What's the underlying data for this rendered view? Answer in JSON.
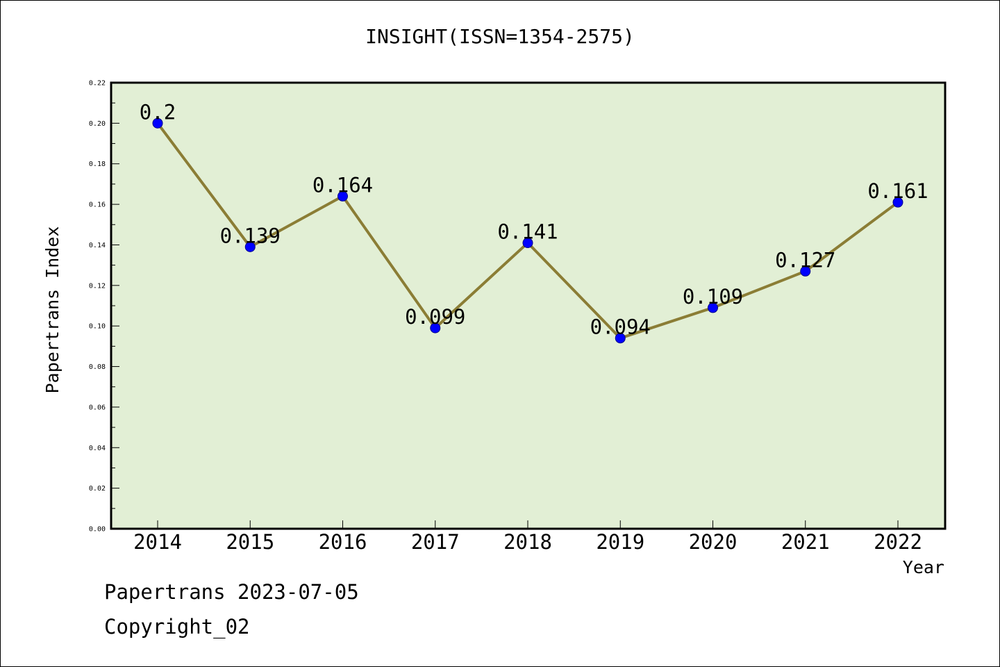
{
  "chart_data": {
    "type": "line",
    "title": "INSIGHT(ISSN=1354-2575)",
    "xlabel": "Year",
    "ylabel": "Papertrans Index",
    "x": [
      "2014",
      "2015",
      "2016",
      "2017",
      "2018",
      "2019",
      "2020",
      "2021",
      "2022"
    ],
    "values": [
      0.2,
      0.139,
      0.164,
      0.099,
      0.141,
      0.094,
      0.109,
      0.127,
      0.161
    ],
    "data_labels": [
      "0.2",
      "0.139",
      "0.164",
      "0.099",
      "0.141",
      "0.094",
      "0.109",
      "0.127",
      "0.161"
    ],
    "ylim": [
      0.0,
      0.22
    ],
    "yticks": [
      "0.00",
      "0.02",
      "0.04",
      "0.06",
      "0.08",
      "0.10",
      "0.12",
      "0.14",
      "0.16",
      "0.18",
      "0.20",
      "0.22"
    ],
    "grid": false,
    "legend": "none",
    "colors": {
      "plot_background": "#e2efd5",
      "line": "#8b7d35",
      "marker": "#0000ff",
      "marker_edge": "#00008b"
    }
  },
  "footer": {
    "line1": "Papertrans 2023-07-05",
    "line2": "Copyright_02"
  }
}
